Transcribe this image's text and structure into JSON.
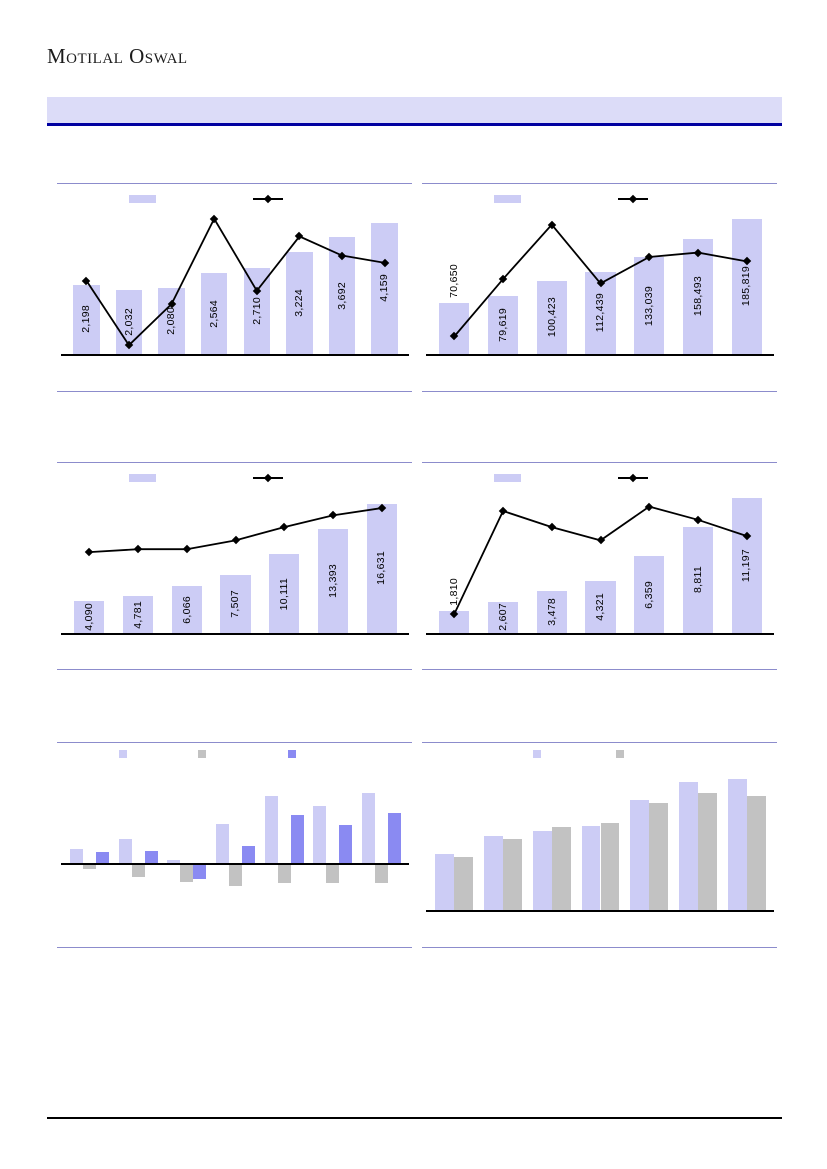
{
  "page": {
    "logo_text": "Motilal Oswal"
  },
  "colors": {
    "banner_bg": "#dcdcf8",
    "banner_border": "#0000a0",
    "block_border": "#8c8ccc",
    "bar_light": "#ccccf5",
    "bar_blue": "#8a8af2",
    "bar_gray": "#c2c2c2",
    "line": "#000000",
    "axis": "#000000"
  },
  "chart_data": [
    {
      "id": "top-left",
      "type": "bar",
      "overlay": "line-with-diamond-markers",
      "bars": 8,
      "values": [
        2198,
        2032,
        2080,
        2564,
        2710,
        3224,
        3692,
        4159
      ],
      "bar_labels": [
        "2,198",
        "2,032",
        "2,080",
        "2,564",
        "2,710",
        "3,224",
        "3,692",
        "4,159"
      ],
      "bar_scale_max": 4650,
      "line_pct_est": [
        50,
        6,
        34,
        92,
        43,
        80,
        67,
        62
      ],
      "outside_label_indexes": [],
      "title": "",
      "xlabel": "",
      "ylabel": "",
      "axis_tick_labels_visible": false
    },
    {
      "id": "top-right",
      "type": "bar",
      "overlay": "line-with-diamond-markers",
      "bars": 7,
      "values": [
        70650,
        79619,
        100423,
        112439,
        133039,
        158493,
        185819
      ],
      "bar_labels": [
        "70,650",
        "79,619",
        "100,423",
        "112,439",
        "133,039",
        "158,493",
        "185,819"
      ],
      "bar_scale_max": 202000,
      "line_pct_est": [
        12,
        51,
        88,
        48,
        66,
        69,
        63
      ],
      "outside_label_indexes": [
        0
      ],
      "title": "",
      "xlabel": "",
      "ylabel": "",
      "axis_tick_labels_visible": false
    },
    {
      "id": "mid-left",
      "type": "bar",
      "overlay": "line-with-diamond-markers",
      "bars": 7,
      "values": [
        4090,
        4781,
        6066,
        7507,
        10111,
        13393,
        16631
      ],
      "bar_labels": [
        "4,090",
        "4,781",
        "6,066",
        "7,507",
        "10,111",
        "13,393",
        "16,631"
      ],
      "bar_scale_max": 18900,
      "line_pct_est": [
        55,
        57,
        57,
        63,
        72,
        80,
        85
      ],
      "outside_label_indexes": [],
      "title": "",
      "xlabel": "",
      "ylabel": "",
      "axis_tick_labels_visible": false
    },
    {
      "id": "mid-right",
      "type": "bar",
      "overlay": "line-with-diamond-markers",
      "bars": 7,
      "values": [
        1810,
        2607,
        3478,
        4321,
        6359,
        8811,
        11197
      ],
      "bar_labels": [
        "1,810",
        "2,607",
        "3,478",
        "4,321",
        "6,359",
        "8,811",
        "11,197"
      ],
      "bar_scale_max": 12200,
      "line_pct_est": [
        13,
        83,
        72,
        63,
        86,
        77,
        66
      ],
      "outside_label_indexes": [
        0
      ],
      "title": "",
      "xlabel": "",
      "ylabel": "",
      "axis_tick_labels_visible": false
    },
    {
      "id": "bottom-left",
      "type": "grouped-bar",
      "categories_count": 7,
      "baseline_pct": 80.3,
      "group_width_frac": 0.8,
      "series": [
        {
          "color": "bar_light",
          "values_pct_est": [
            15,
            25,
            4,
            41,
            69,
            59,
            72
          ]
        },
        {
          "color": "bar_gray",
          "values_pct_est": [
            -5,
            -13,
            -18,
            -23,
            -19,
            -19,
            -19
          ]
        },
        {
          "color": "bar_blue",
          "values_pct_est": [
            12,
            13,
            -15,
            18,
            50,
            40,
            52
          ]
        }
      ],
      "title": "",
      "xlabel": "",
      "ylabel": "",
      "axis_tick_labels_visible": false
    },
    {
      "id": "bottom-right",
      "type": "grouped-bar",
      "categories_count": 7,
      "baseline_pct": 100,
      "group_width_frac": 0.78,
      "series": [
        {
          "color": "bar_light",
          "values_pct_est": [
            40,
            53,
            56,
            60,
            78,
            91,
            93
          ]
        },
        {
          "color": "bar_gray",
          "values_pct_est": [
            38,
            51,
            59,
            62,
            76,
            83,
            81
          ]
        }
      ],
      "title": "",
      "xlabel": "",
      "ylabel": "",
      "axis_tick_labels_visible": false
    }
  ]
}
